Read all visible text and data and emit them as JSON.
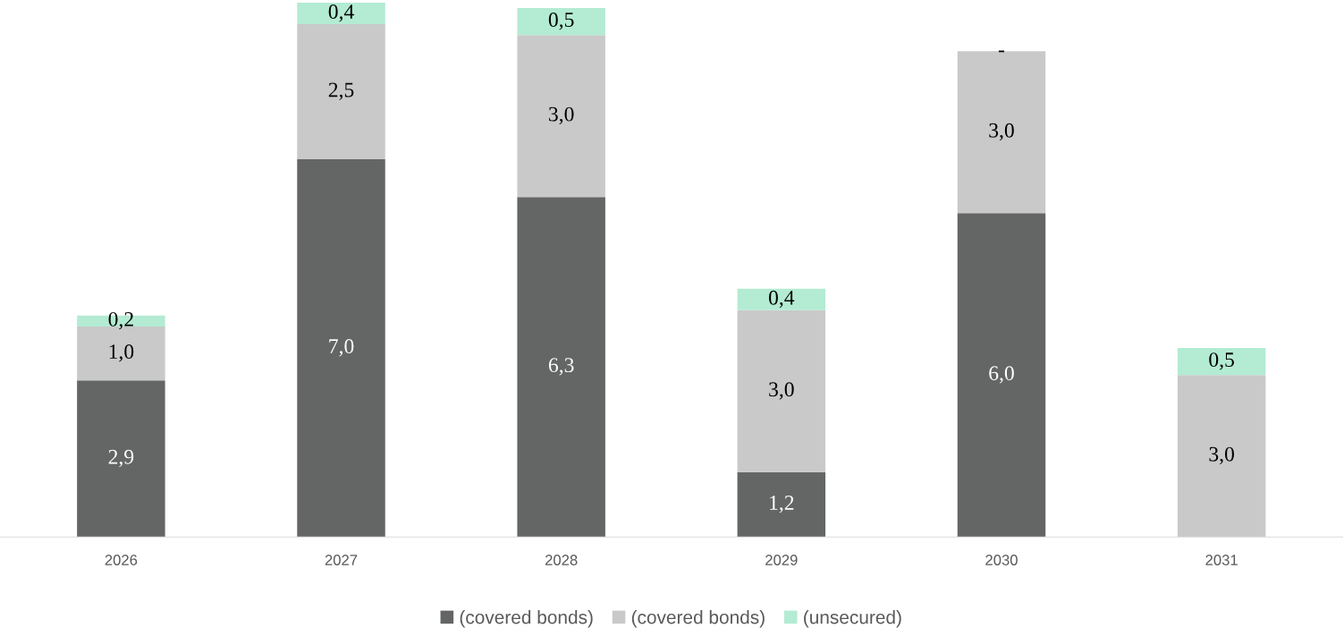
{
  "chart_data": {
    "type": "bar",
    "stacked": true,
    "legend": "bottom",
    "grid": false,
    "tick_labels": "x",
    "categories": [
      "2026",
      "2027",
      "2028",
      "2029",
      "2030",
      "2031"
    ],
    "series": [
      {
        "name": "(covered bonds)",
        "color": "#636665",
        "values": [
          2.9,
          7.0,
          6.3,
          1.2,
          6.0,
          0
        ],
        "value_labels": [
          "2,9",
          "7,0",
          "6,3",
          "1,2",
          "6,0",
          null
        ]
      },
      {
        "name": "(covered bonds)",
        "color": "#c8c9c8",
        "values": [
          1.0,
          2.5,
          3.0,
          3.0,
          3.0,
          3.0
        ],
        "value_labels": [
          "1,0",
          "2,5",
          "3,0",
          "3,0",
          "3,0",
          "3,0"
        ]
      },
      {
        "name": "(unsecured)",
        "color": "#b3ebd3",
        "values": [
          0.2,
          0.4,
          0.5,
          0.4,
          0,
          0.5
        ],
        "value_labels": [
          "0,2",
          "0,4",
          "0,5",
          "0,4",
          "-",
          "0,5"
        ]
      }
    ]
  }
}
